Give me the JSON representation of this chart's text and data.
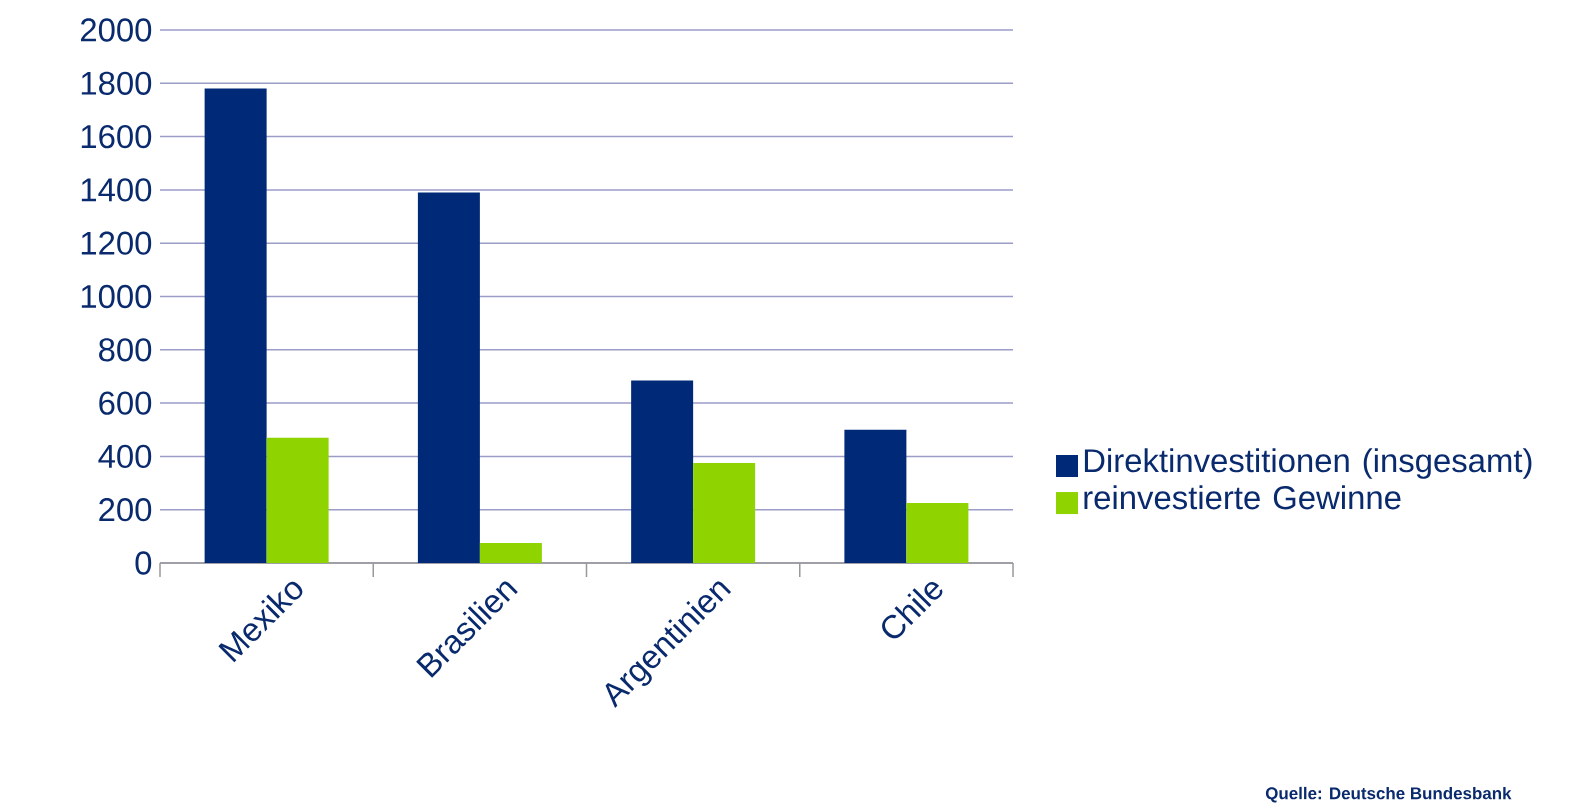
{
  "chart_data": {
    "type": "bar",
    "categories": [
      "Mexiko",
      "Brasilien",
      "Argentinien",
      "Chile"
    ],
    "series": [
      {
        "name": "Direktinvestitionen (insgesamt)",
        "color": "#002a77",
        "values": [
          1780,
          1390,
          685,
          500
        ]
      },
      {
        "name": "reinvestierte Gewinne",
        "color": "#8fd400",
        "values": [
          470,
          75,
          375,
          225
        ]
      }
    ],
    "ylim": [
      0,
      2000
    ],
    "yticks": [
      0,
      200,
      400,
      600,
      800,
      1000,
      1200,
      1400,
      1600,
      1800,
      2000
    ],
    "grid": "y",
    "legend": "right",
    "annotations": [
      "Quelle: Deutsche Bundesbank"
    ]
  }
}
